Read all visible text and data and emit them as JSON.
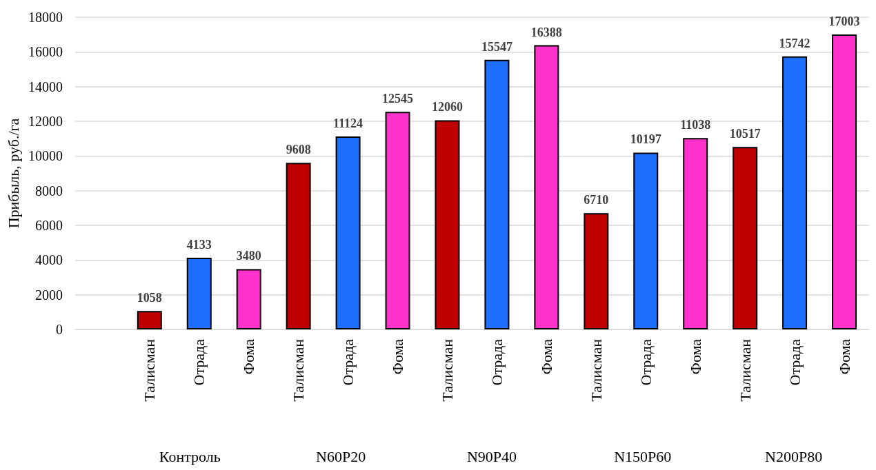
{
  "chart_data": {
    "type": "bar",
    "ylabel": "Прибыль, руб./га",
    "categories": [
      null,
      "Талисман",
      "Отрада",
      "Фома",
      "Талисман",
      "Отрада",
      "Фома",
      "Талисман",
      "Отрада",
      "Фома",
      "Талисман",
      "Отрада",
      "Фома",
      "Талисман",
      "Отрада",
      "Фома"
    ],
    "values": [
      null,
      1058,
      4133,
      3480,
      9608,
      11124,
      12545,
      12060,
      15547,
      16388,
      6710,
      10197,
      11038,
      10517,
      15742,
      17003
    ],
    "colors": [
      "#c00000",
      "#c00000",
      "#1f6fff",
      "#ff33cc",
      "#c00000",
      "#1f6fff",
      "#ff33cc",
      "#c00000",
      "#1f6fff",
      "#ff33cc",
      "#c00000",
      "#1f6fff",
      "#ff33cc",
      "#c00000",
      "#1f6fff",
      "#ff33cc"
    ],
    "annotations": [
      "Контроль",
      "N60P20",
      "N90P40",
      "N150P60",
      "N200P80"
    ],
    "ylim": [
      0,
      18000
    ],
    "yticks": [
      0,
      2000,
      4000,
      6000,
      8000,
      10000,
      12000,
      14000,
      16000,
      18000
    ],
    "grid": "y",
    "data_labels": true
  }
}
